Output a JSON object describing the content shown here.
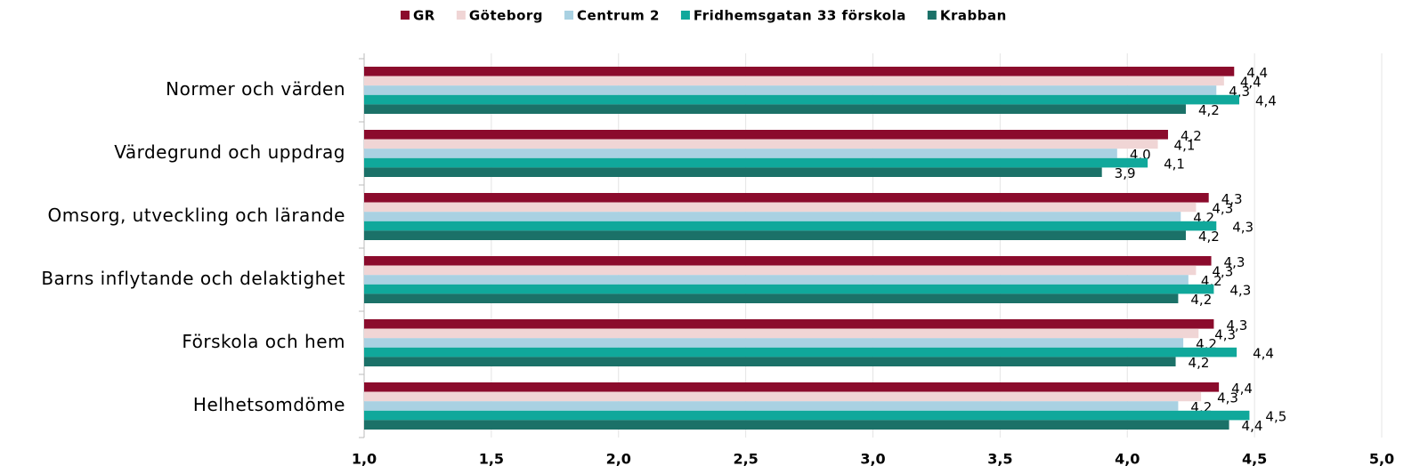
{
  "chart_data": {
    "type": "hbar",
    "categories": [
      "Normer och värden",
      "Värdegrund och uppdrag",
      "Omsorg, utveckling och lärande",
      "Barns inflytande och delaktighet",
      "Förskola och hem",
      "Helhetsomdöme"
    ],
    "series": [
      {
        "name": "GR",
        "color": "#8b0b2c",
        "values": [
          4.42,
          4.16,
          4.32,
          4.33,
          4.34,
          4.36
        ],
        "value_labels": [
          "4,4",
          "4,2",
          "4,3",
          "4,3",
          "4,3",
          "4,4"
        ]
      },
      {
        "name": "Göteborg",
        "color": "#f0d5d5",
        "values": [
          4.38,
          4.12,
          4.27,
          4.27,
          4.28,
          4.29
        ],
        "value_labels": [
          "4,4",
          "4,1",
          "4,3",
          "4,3",
          "4,3",
          "4,3"
        ]
      },
      {
        "name": "Centrum 2",
        "color": "#a9d1e2",
        "values": [
          4.35,
          3.96,
          4.21,
          4.24,
          4.22,
          4.2
        ],
        "value_labels": [
          "4,3",
          "4,0",
          "4,2",
          "4,2",
          "4,2",
          "4,2"
        ]
      },
      {
        "name": "Fridhemsgatan 33 förskola",
        "color": "#10a89b",
        "values": [
          4.44,
          4.08,
          4.35,
          4.34,
          4.43,
          4.48
        ],
        "value_labels": [
          "4,4",
          "4,1",
          "4,3",
          "4,3",
          "4,4",
          "4,5"
        ]
      },
      {
        "name": "Krabban",
        "color": "#1b7168",
        "values": [
          4.23,
          3.9,
          4.23,
          4.2,
          4.19,
          4.4
        ],
        "value_labels": [
          "4,2",
          "3,9",
          "4,2",
          "4,2",
          "4,2",
          "4,4"
        ]
      }
    ],
    "xlim": [
      1,
      5
    ],
    "xticks": [
      {
        "value": 1,
        "label": "1,0"
      },
      {
        "value": 1.5,
        "label": "1,5"
      },
      {
        "value": 2,
        "label": "2,0"
      },
      {
        "value": 2.5,
        "label": "2,5"
      },
      {
        "value": 3,
        "label": "3,0"
      },
      {
        "value": 3.5,
        "label": "3,5"
      },
      {
        "value": 4,
        "label": "4,0"
      },
      {
        "value": 4.5,
        "label": "4,5"
      },
      {
        "value": 5,
        "label": "5,0"
      }
    ],
    "grid": true,
    "legend": "top"
  }
}
